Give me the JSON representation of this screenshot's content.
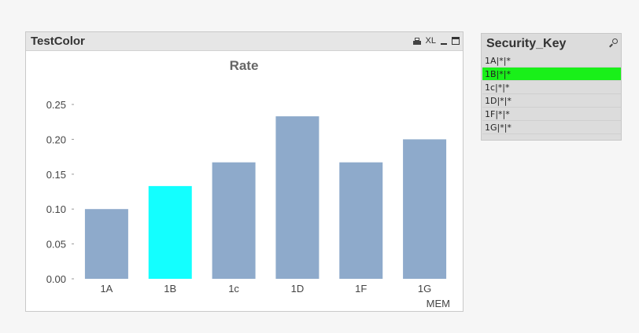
{
  "chart_window": {
    "title": "TestColor",
    "print_icon": "print-icon",
    "xl_label": "XL",
    "minimize_icon": "minimize-icon",
    "maximize_icon": "maximize-icon"
  },
  "chart_data": {
    "type": "bar",
    "title": "Rate",
    "xlabel": "MEM",
    "ylabel": "",
    "categories": [
      "1A",
      "1B",
      "1c",
      "1D",
      "1F",
      "1G"
    ],
    "values": [
      0.1,
      0.133,
      0.167,
      0.233,
      0.167,
      0.2
    ],
    "ylim": [
      0,
      0.25
    ],
    "yticks": [
      "0.00",
      "0.05",
      "0.10",
      "0.15",
      "0.20",
      "0.25"
    ],
    "grid": false,
    "colors": {
      "default": "#8eaacb",
      "highlight": "#13ffff"
    },
    "highlighted_category": "1B"
  },
  "listbox": {
    "title": "Security_Key",
    "search_icon": "search-icon",
    "selected_color": "#19f019",
    "items": [
      {
        "label": "1A|*|*",
        "selected": false
      },
      {
        "label": "1B|*|*",
        "selected": true
      },
      {
        "label": "1c|*|*",
        "selected": false
      },
      {
        "label": "1D|*|*",
        "selected": false
      },
      {
        "label": "1F|*|*",
        "selected": false
      },
      {
        "label": "1G|*|*",
        "selected": false
      }
    ]
  }
}
